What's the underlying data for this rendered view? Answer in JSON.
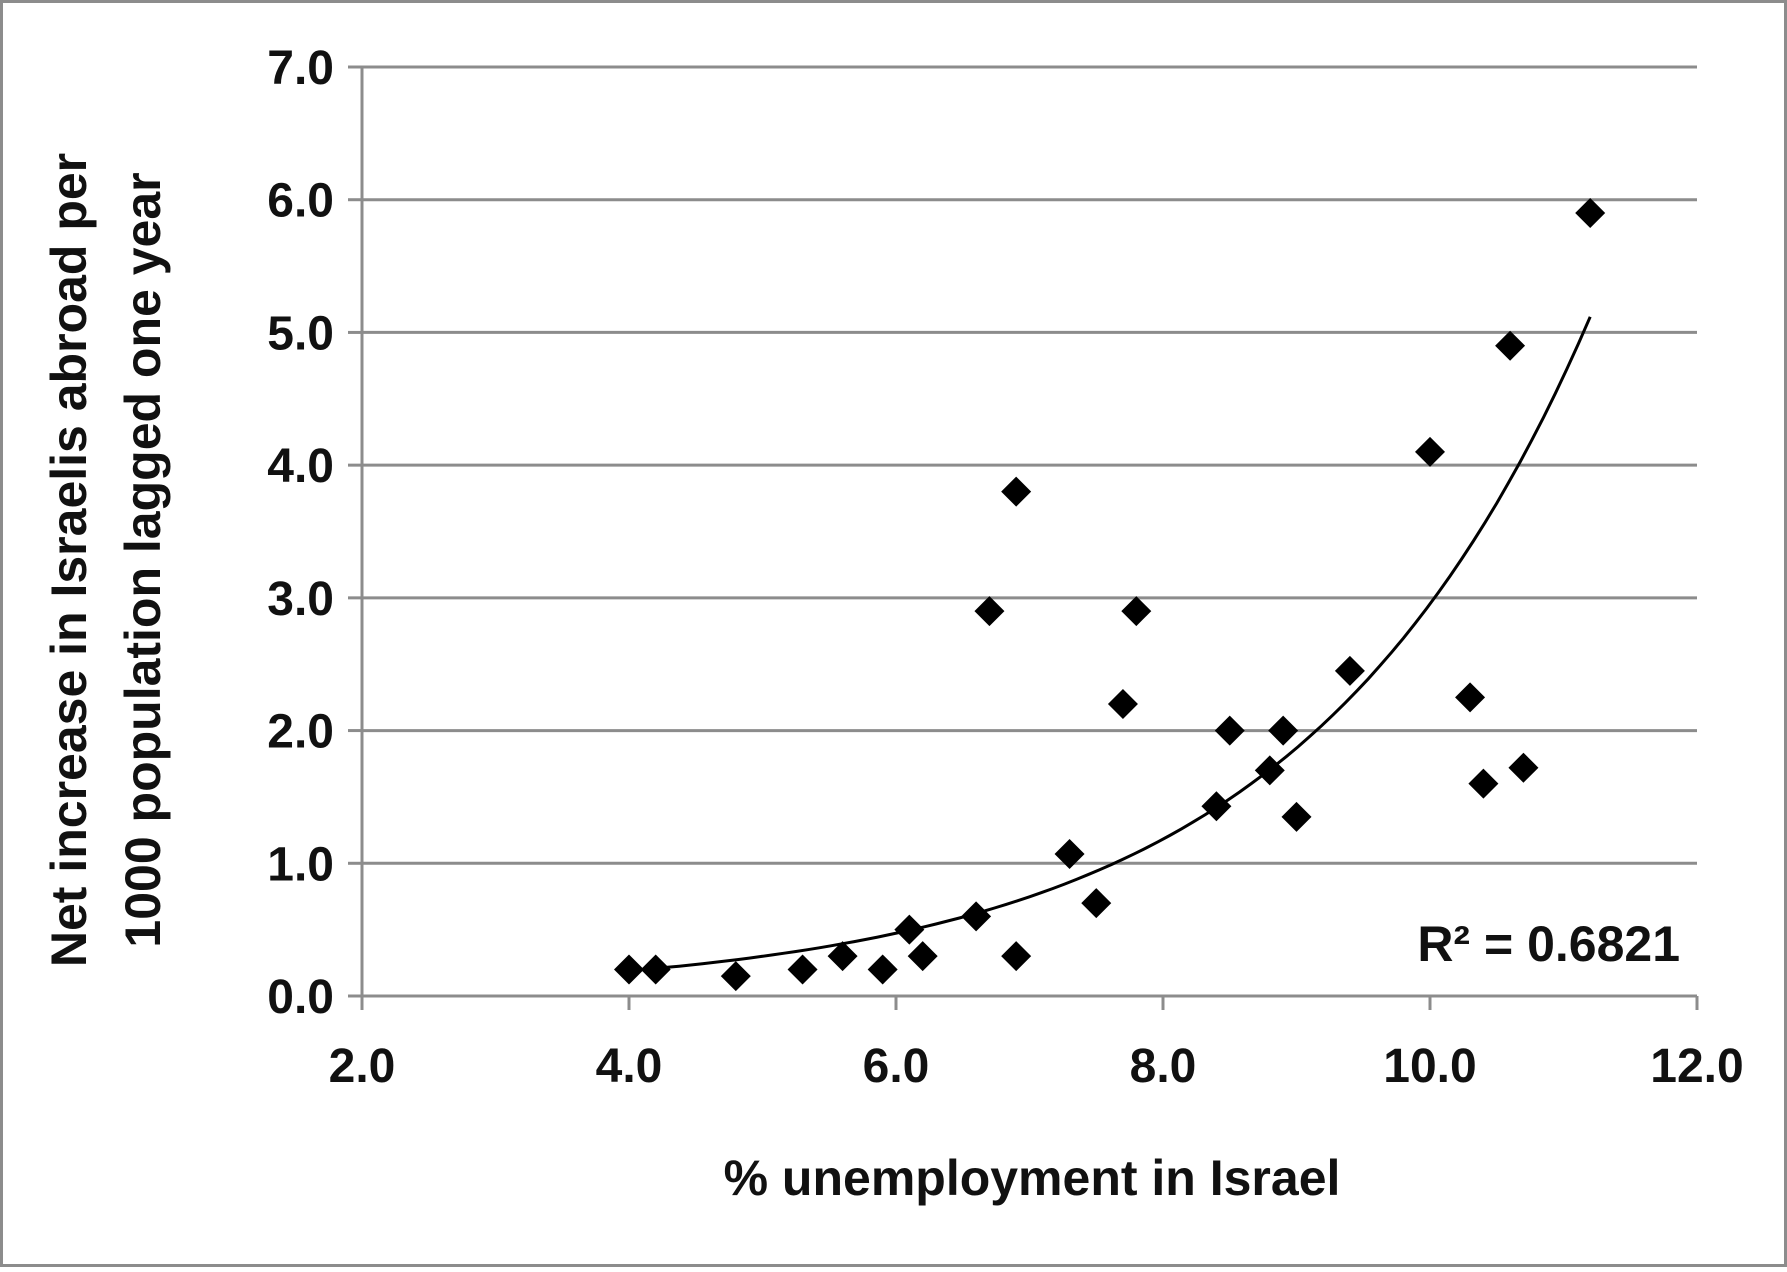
{
  "chart_data": {
    "type": "scatter",
    "title": "",
    "xlabel": "% unemployment in Israel",
    "ylabel_line1": "Net increase in Israelis abroad per",
    "ylabel_line2": "1000 population lagged one year",
    "xlim": [
      2.0,
      12.0
    ],
    "ylim": [
      0.0,
      7.0
    ],
    "x_ticks": [
      2.0,
      4.0,
      6.0,
      8.0,
      10.0,
      12.0
    ],
    "x_tick_labels": [
      "2.0",
      "4.0",
      "6.0",
      "8.0",
      "10.0",
      "12.0"
    ],
    "y_ticks": [
      0.0,
      1.0,
      2.0,
      3.0,
      4.0,
      5.0,
      6.0,
      7.0
    ],
    "y_tick_labels": [
      "0.0",
      "1.0",
      "2.0",
      "3.0",
      "4.0",
      "5.0",
      "6.0",
      "7.0"
    ],
    "grid": "horizontal",
    "marker": "diamond",
    "colors": {
      "marker": "#000000",
      "trendline": "#000000",
      "grid": "#8c8c8c",
      "frame": "#8c8c8c"
    },
    "points": [
      {
        "x": 4.0,
        "y": 0.2
      },
      {
        "x": 4.2,
        "y": 0.2
      },
      {
        "x": 4.8,
        "y": 0.15
      },
      {
        "x": 5.3,
        "y": 0.2
      },
      {
        "x": 5.6,
        "y": 0.3
      },
      {
        "x": 5.9,
        "y": 0.2
      },
      {
        "x": 6.1,
        "y": 0.5
      },
      {
        "x": 6.2,
        "y": 0.3
      },
      {
        "x": 6.6,
        "y": 0.6
      },
      {
        "x": 6.7,
        "y": 2.9
      },
      {
        "x": 6.9,
        "y": 3.8
      },
      {
        "x": 6.9,
        "y": 0.3
      },
      {
        "x": 7.3,
        "y": 1.07
      },
      {
        "x": 7.5,
        "y": 0.7
      },
      {
        "x": 7.7,
        "y": 2.2
      },
      {
        "x": 7.8,
        "y": 2.9
      },
      {
        "x": 8.4,
        "y": 1.43
      },
      {
        "x": 8.5,
        "y": 2.0
      },
      {
        "x": 8.8,
        "y": 1.7
      },
      {
        "x": 8.9,
        "y": 2.0
      },
      {
        "x": 9.0,
        "y": 1.35
      },
      {
        "x": 9.4,
        "y": 2.45
      },
      {
        "x": 10.0,
        "y": 4.1
      },
      {
        "x": 10.3,
        "y": 2.25
      },
      {
        "x": 10.4,
        "y": 1.6
      },
      {
        "x": 10.6,
        "y": 4.9
      },
      {
        "x": 10.7,
        "y": 1.72
      },
      {
        "x": 11.2,
        "y": 5.9
      }
    ],
    "trendline": {
      "type": "exponential",
      "x_range": [
        4.2,
        11.2
      ],
      "r_squared_label": "R² = 0.6821"
    }
  }
}
